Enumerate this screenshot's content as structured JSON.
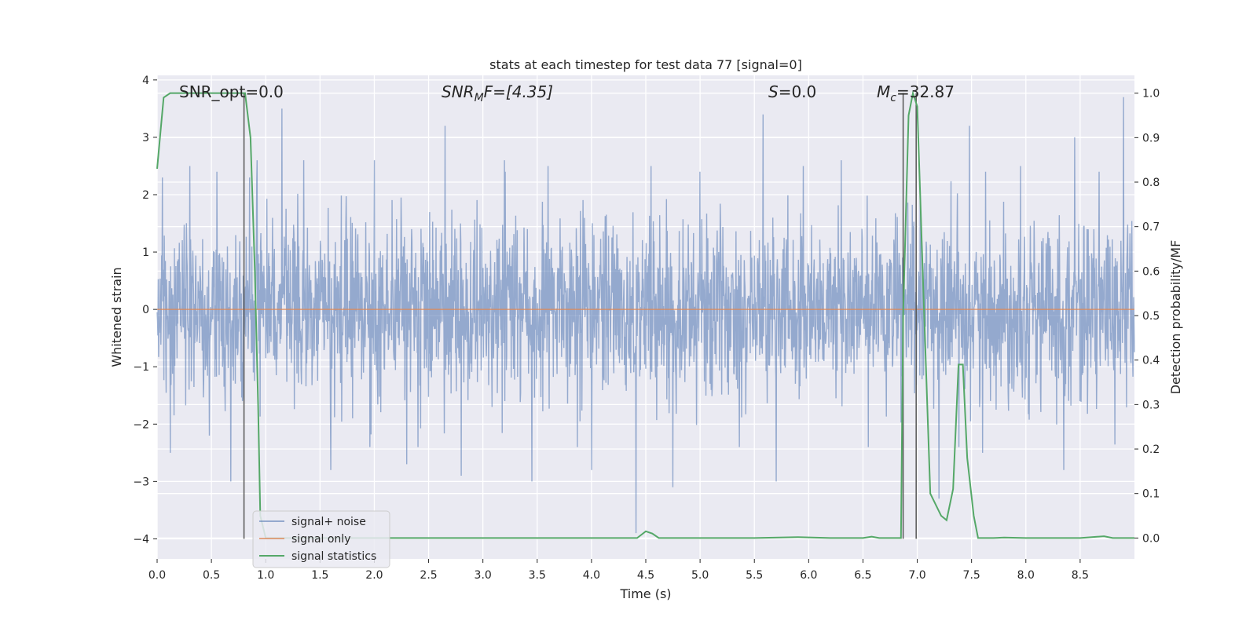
{
  "chart_data": {
    "type": "line",
    "title": "stats at each timestep for test data 77 [signal=0]",
    "xlabel": "Time (s)",
    "ylabel": "Whitened strain",
    "y2label": "Detection probability/MF",
    "xlim": [
      0.0,
      9.0
    ],
    "ylim": [
      -4.35,
      4.08
    ],
    "y2lim": [
      -0.047,
      1.04
    ],
    "xticks": [
      "0.0",
      "0.5",
      "1.0",
      "1.5",
      "2.0",
      "2.5",
      "3.0",
      "3.5",
      "4.0",
      "4.5",
      "5.0",
      "5.5",
      "6.0",
      "6.5",
      "7.0",
      "7.5",
      "8.0",
      "8.5"
    ],
    "yticks": [
      "−4",
      "−3",
      "−2",
      "−1",
      "0",
      "1",
      "2",
      "3",
      "4"
    ],
    "y2ticks": [
      "0.0",
      "0.1",
      "0.2",
      "0.3",
      "0.4",
      "0.5",
      "0.6",
      "0.7",
      "0.8",
      "0.9",
      "1.0"
    ],
    "grid": true,
    "annotations": {
      "snr_opt": "SNR_opt=0.0",
      "snr_mf_main": "SNR",
      "snr_mf_sub": "M",
      "snr_mf_rest": "F=[4.35]",
      "s_main": "S",
      "s_rest": "=0.0",
      "mc_main": "M",
      "mc_sub": "c",
      "mc_rest": "=32.87"
    },
    "vlines_x": [
      0.8,
      6.87,
      6.99
    ],
    "legend_position": "lower-left",
    "series": [
      {
        "name": "signal+ noise",
        "color": "#4c72b0",
        "axis": "left",
        "noise_spikes": [
          {
            "x": 0.05,
            "y": 2.3
          },
          {
            "x": 0.12,
            "y": -2.5
          },
          {
            "x": 0.3,
            "y": 2.5
          },
          {
            "x": 0.48,
            "y": -2.2
          },
          {
            "x": 0.55,
            "y": 2.4
          },
          {
            "x": 0.68,
            "y": -3.0
          },
          {
            "x": 0.85,
            "y": 2.3
          },
          {
            "x": 0.92,
            "y": 2.6
          },
          {
            "x": 1.15,
            "y": 3.5
          },
          {
            "x": 1.35,
            "y": 2.6
          },
          {
            "x": 1.6,
            "y": -2.8
          },
          {
            "x": 2.0,
            "y": 2.6
          },
          {
            "x": 2.3,
            "y": -2.7
          },
          {
            "x": 2.65,
            "y": 3.2
          },
          {
            "x": 2.8,
            "y": -2.9
          },
          {
            "x": 3.2,
            "y": 2.6
          },
          {
            "x": 3.45,
            "y": -3.0
          },
          {
            "x": 3.6,
            "y": 2.5
          },
          {
            "x": 4.0,
            "y": -2.8
          },
          {
            "x": 4.41,
            "y": -3.9
          },
          {
            "x": 4.55,
            "y": 2.5
          },
          {
            "x": 4.75,
            "y": -3.1
          },
          {
            "x": 5.0,
            "y": 2.4
          },
          {
            "x": 5.58,
            "y": 3.4
          },
          {
            "x": 5.7,
            "y": -3.0
          },
          {
            "x": 5.95,
            "y": 2.5
          },
          {
            "x": 6.3,
            "y": 2.6
          },
          {
            "x": 6.55,
            "y": -2.4
          },
          {
            "x": 7.2,
            "y": -3.3
          },
          {
            "x": 7.48,
            "y": 3.2
          },
          {
            "x": 7.6,
            "y": -2.5
          },
          {
            "x": 7.95,
            "y": 2.5
          },
          {
            "x": 8.35,
            "y": -2.8
          },
          {
            "x": 8.45,
            "y": 3.0
          },
          {
            "x": 8.9,
            "y": 3.7
          }
        ]
      },
      {
        "name": "signal only",
        "color": "#dd8452",
        "axis": "left",
        "x": [
          0.0,
          9.0
        ],
        "y": [
          0.0,
          0.0
        ]
      },
      {
        "name": "signal statistics",
        "color": "#55a868",
        "axis": "right",
        "x": [
          0.0,
          0.06,
          0.12,
          0.2,
          0.4,
          0.6,
          0.78,
          0.81,
          0.86,
          0.9,
          0.93,
          0.95,
          1.0,
          2.0,
          3.0,
          4.0,
          4.42,
          4.5,
          4.56,
          4.62,
          5.0,
          5.5,
          5.9,
          6.2,
          6.5,
          6.58,
          6.65,
          6.85,
          6.87,
          6.92,
          6.96,
          7.0,
          7.05,
          7.12,
          7.22,
          7.27,
          7.33,
          7.38,
          7.42,
          7.46,
          7.52,
          7.56,
          7.7,
          7.8,
          8.0,
          8.5,
          8.72,
          8.8,
          8.88,
          9.0
        ],
        "y": [
          0.83,
          0.99,
          1.0,
          1.0,
          1.0,
          1.0,
          1.0,
          1.0,
          0.9,
          0.6,
          0.3,
          0.05,
          0.0,
          0.0,
          0.0,
          0.0,
          0.0,
          0.015,
          0.01,
          0.0,
          0.0,
          0.0,
          0.002,
          0.0,
          0.0,
          0.003,
          0.0,
          0.0,
          0.5,
          0.95,
          1.0,
          0.97,
          0.6,
          0.1,
          0.05,
          0.04,
          0.11,
          0.39,
          0.39,
          0.18,
          0.05,
          0.0,
          0.0,
          0.001,
          0.0,
          0.0,
          0.004,
          0.0,
          0.0,
          0.0
        ]
      }
    ]
  }
}
